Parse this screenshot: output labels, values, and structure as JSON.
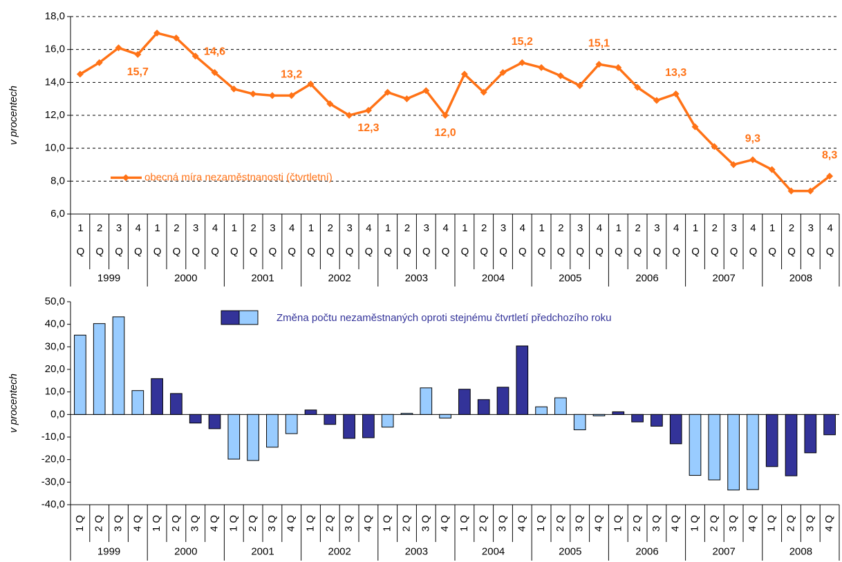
{
  "chart_data": [
    {
      "type": "line",
      "y_label": "v procentech",
      "categories": [
        "1 Q",
        "2 Q",
        "3 Q",
        "4 Q",
        "1 Q",
        "2 Q",
        "3 Q",
        "4 Q",
        "1 Q",
        "2 Q",
        "3 Q",
        "4 Q",
        "1 Q",
        "2 Q",
        "3 Q",
        "4 Q",
        "1 Q",
        "2 Q",
        "3 Q",
        "4 Q",
        "1 Q",
        "2 Q",
        "3 Q",
        "4 Q",
        "1 Q",
        "2 Q",
        "3 Q",
        "4 Q",
        "1 Q",
        "2 Q",
        "3 Q",
        "4 Q",
        "1 Q",
        "2 Q",
        "3 Q",
        "4 Q",
        "1 Q",
        "2 Q",
        "3 Q",
        "4 Q"
      ],
      "years": [
        "1999",
        "2000",
        "2001",
        "2002",
        "2003",
        "2004",
        "2005",
        "2006",
        "2007",
        "2008"
      ],
      "series": [
        {
          "name": "obecná míra nezaměstnanosti (čtvrtletní)",
          "color": "#ff7216",
          "values": [
            14.5,
            15.2,
            16.1,
            15.7,
            17.0,
            16.7,
            15.6,
            14.6,
            13.6,
            13.3,
            13.2,
            13.2,
            13.9,
            12.7,
            12.0,
            12.3,
            13.4,
            13.0,
            13.5,
            12.0,
            14.5,
            13.4,
            14.6,
            15.2,
            14.9,
            14.4,
            13.8,
            15.1,
            14.9,
            13.7,
            12.9,
            13.3,
            11.3,
            10.1,
            9.0,
            9.3,
            8.7,
            7.4,
            7.4,
            8.3
          ],
          "value_labels": [
            null,
            null,
            null,
            "15,7",
            null,
            null,
            null,
            "14,6",
            null,
            null,
            null,
            "13,2",
            null,
            null,
            null,
            "12,3",
            null,
            null,
            null,
            "12,0",
            null,
            null,
            null,
            "15,2",
            null,
            null,
            null,
            "15,1",
            null,
            null,
            null,
            "13,3",
            null,
            null,
            null,
            "9,3",
            null,
            null,
            null,
            "8,3"
          ]
        }
      ],
      "ylim": [
        6,
        18
      ],
      "yticks": [
        {
          "value": 6,
          "label": "6,0"
        },
        {
          "value": 8,
          "label": "8,0"
        },
        {
          "value": 10,
          "label": "10,0"
        },
        {
          "value": 12,
          "label": "12,0"
        },
        {
          "value": 14,
          "label": "14,0"
        },
        {
          "value": 16,
          "label": "16,0"
        },
        {
          "value": 18,
          "label": "18,0"
        }
      ],
      "grid": true,
      "legend": "lower left"
    },
    {
      "type": "bar",
      "y_label": "v procentech",
      "categories": [
        "1 Q",
        "2 Q",
        "3 Q",
        "4 Q",
        "1 Q",
        "2 Q",
        "3 Q",
        "4 Q",
        "1 Q",
        "2 Q",
        "3 Q",
        "4 Q",
        "1 Q",
        "2 Q",
        "3 Q",
        "4 Q",
        "1 Q",
        "2 Q",
        "3 Q",
        "4 Q",
        "1 Q",
        "2 Q",
        "3 Q",
        "4 Q",
        "1 Q",
        "2 Q",
        "3 Q",
        "4 Q",
        "1 Q",
        "2 Q",
        "3 Q",
        "4 Q",
        "1 Q",
        "2 Q",
        "3 Q",
        "4 Q",
        "1 Q",
        "2 Q",
        "3 Q",
        "4 Q"
      ],
      "years": [
        "1999",
        "2000",
        "2001",
        "2002",
        "2003",
        "2004",
        "2005",
        "2006",
        "2007",
        "2008"
      ],
      "series": [
        {
          "name": "Změna počtu nezaměstnaných oproti stejnému čtvrtletí předchozího roku",
          "colors": [
            "#99ccff",
            "#333399"
          ],
          "values": [
            35.2,
            40.3,
            43.3,
            10.6,
            15.9,
            9.3,
            -3.8,
            -6.3,
            -19.8,
            -20.4,
            -14.5,
            -8.5,
            2.0,
            -4.4,
            -10.6,
            -10.3,
            -5.6,
            0.5,
            11.8,
            -1.6,
            11.2,
            6.6,
            12.1,
            30.4,
            3.4,
            7.4,
            -6.8,
            -0.6,
            1.2,
            -3.3,
            -5.2,
            -13.0,
            -27.0,
            -29.0,
            -33.5,
            -33.3,
            -23.1,
            -27.2,
            -17.0,
            -9.0
          ]
        }
      ],
      "ylim": [
        -40,
        50
      ],
      "yticks": [
        {
          "value": -40,
          "label": "-40,0"
        },
        {
          "value": -30,
          "label": "-30,0"
        },
        {
          "value": -20,
          "label": "-20,0"
        },
        {
          "value": -10,
          "label": "-10,0"
        },
        {
          "value": 0,
          "label": "0,0"
        },
        {
          "value": 10,
          "label": "10,0"
        },
        {
          "value": 20,
          "label": "20,0"
        },
        {
          "value": 30,
          "label": "30,0"
        },
        {
          "value": 40,
          "label": "40,0"
        },
        {
          "value": 50,
          "label": "50,0"
        }
      ],
      "grid": false,
      "legend": "upper center"
    }
  ]
}
